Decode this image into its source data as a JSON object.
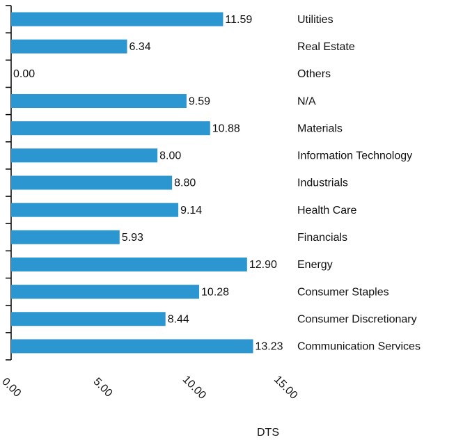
{
  "chart_data": {
    "type": "hbar",
    "x_label": "DTS",
    "categories": [
      "Utilities",
      "Real Estate",
      "Others",
      "N/A",
      "Materials",
      "Information Technology",
      "Industrials",
      "Health Care",
      "Financials",
      "Energy",
      "Consumer Staples",
      "Consumer Discretionary",
      "Communication Services"
    ],
    "values": [
      11.59,
      6.34,
      0,
      9.59,
      10.88,
      8,
      8.8,
      9.14,
      5.93,
      12.9,
      10.28,
      8.44,
      13.23
    ],
    "value_labels": [
      "11.59",
      "6.34",
      "0.00",
      "9.59",
      "10.88",
      "8.00",
      "8.80",
      "9.14",
      "5.93",
      "12.90",
      "10.28",
      "8.44",
      "13.23"
    ],
    "color": "#2b96d0",
    "xlim": [
      0,
      15
    ],
    "xticks": [
      {
        "value": 0,
        "label": "0.00"
      },
      {
        "value": 5,
        "label": "5.00"
      },
      {
        "value": 10,
        "label": "10.00"
      },
      {
        "value": 15,
        "label": "15.00"
      }
    ]
  }
}
